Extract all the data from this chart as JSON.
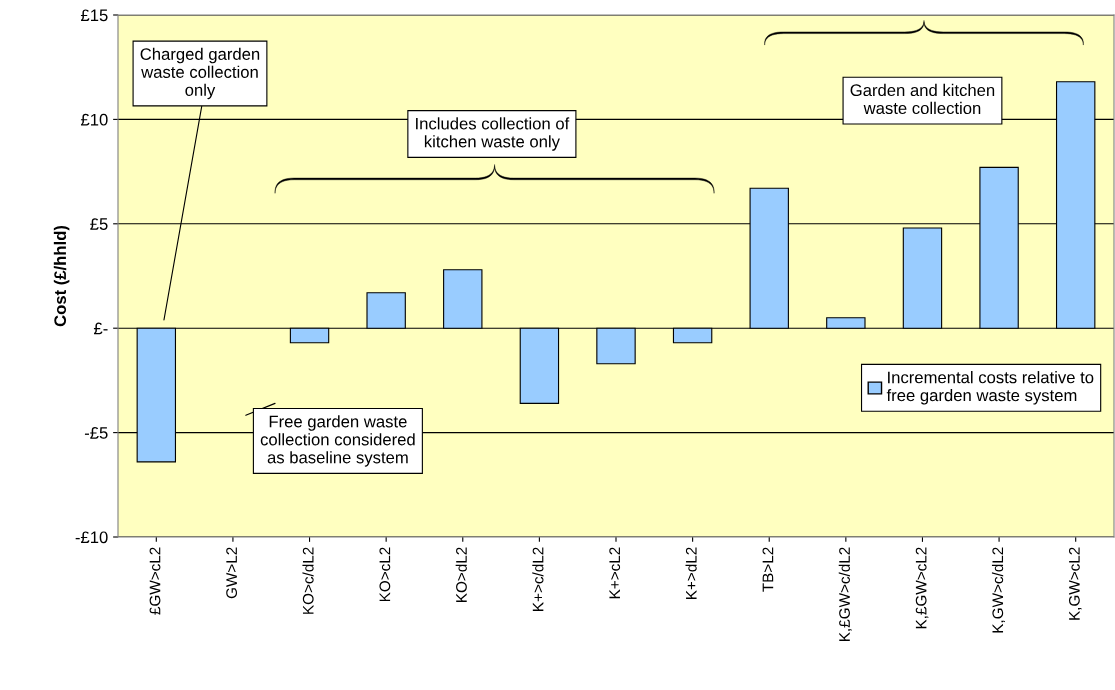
{
  "chart_data": {
    "type": "bar",
    "ylabel": "Cost (£/hhld)",
    "categories": [
      "£GW>cL2",
      "GW>L2",
      "KO>c/dL2",
      "KO>cL2",
      "KO>dL2",
      "K+>c/dL2",
      "K+>cL2",
      "K+>dL2",
      "TB>L2",
      "K,£GW>c/dL2",
      "K,£GW>cL2",
      "K,GW>c/dL2",
      "K,GW>cL2"
    ],
    "series": [
      {
        "name": "Incremental costs relative to\nfree garden waste system",
        "color": "#99ccff",
        "values": [
          -6.4,
          0,
          -0.7,
          1.7,
          2.8,
          -3.6,
          -1.7,
          -0.7,
          6.7,
          0.5,
          4.8,
          7.7,
          11.8
        ]
      }
    ],
    "ylim": [
      -10,
      15
    ],
    "yticks": [
      {
        "value": -10,
        "label": "-£10"
      },
      {
        "value": -5,
        "label": "-£5"
      },
      {
        "value": 0,
        "label": "£-"
      },
      {
        "value": 5,
        "label": "£5"
      },
      {
        "value": 10,
        "label": "£10"
      },
      {
        "value": 15,
        "label": "£15"
      }
    ],
    "grid": "y",
    "legend": "bottom right",
    "annotations": [
      "Charged garden\nwaste collection\nonly",
      "Free garden waste\ncollection considered\nas baseline system",
      "Includes collection of\nkitchen waste only",
      "Garden and kitchen\nwaste collection"
    ]
  }
}
